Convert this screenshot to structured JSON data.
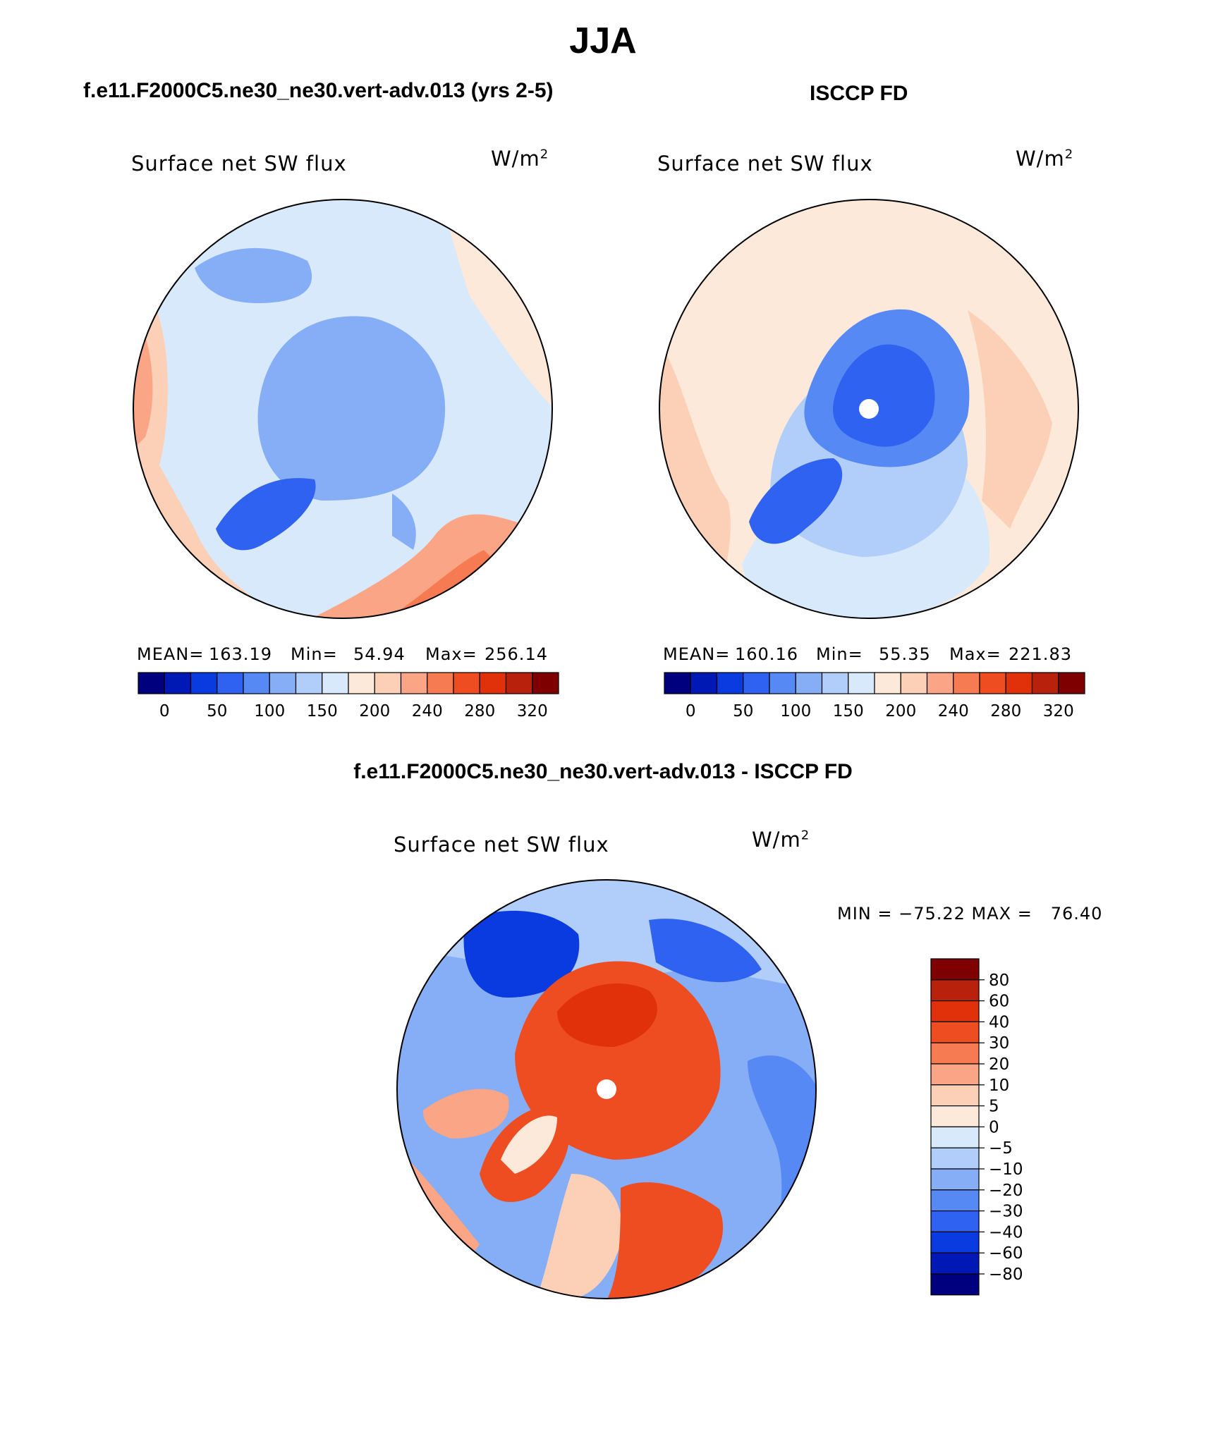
{
  "main_title": "JJA",
  "panels": {
    "model": {
      "title": "f.e11.F2000C5.ne30_ne30.vert-adv.013 (yrs 2-5)",
      "field": "Surface net SW flux",
      "units_base": "W/m",
      "units_exp": "2",
      "mean_label": "MEAN=",
      "mean": "163.19",
      "min_label": "Min=",
      "min": "54.94",
      "max_label": "Max=",
      "max": "256.14"
    },
    "obs": {
      "title": "ISCCP FD",
      "field": "Surface net SW flux",
      "units_base": "W/m",
      "units_exp": "2",
      "mean_label": "MEAN=",
      "mean": "160.16",
      "min_label": "Min=",
      "min": "55.35",
      "max_label": "Max=",
      "max": "221.83"
    },
    "diff": {
      "title": "f.e11.F2000C5.ne30_ne30.vert-adv.013 - ISCCP FD",
      "field": "Surface net SW flux",
      "units_base": "W/m",
      "units_exp": "2",
      "minmax_text": "MIN = −75.22 MAX =   76.40"
    }
  },
  "chart_data": [
    {
      "type": "heatmap",
      "projection": "north-polar-stereographic",
      "title": "f.e11.F2000C5.ne30_ne30.vert-adv.013 (yrs 2-5)",
      "field": "Surface net SW flux",
      "units": "W/m2",
      "mean": 163.19,
      "min": 54.94,
      "max": 256.14,
      "colorbar": {
        "orientation": "horizontal",
        "tick_labels": [
          "0",
          "50",
          "100",
          "150",
          "200",
          "240",
          "280",
          "320"
        ],
        "colors": [
          "#00007f",
          "#0018b4",
          "#0a3be0",
          "#2f62f0",
          "#5689f3",
          "#86aef6",
          "#b1cdf9",
          "#d8e9fc",
          "#fde9d9",
          "#fcd0b6",
          "#faa585",
          "#f67b53",
          "#ee4d22",
          "#e0310b",
          "#b8210b",
          "#7f0000"
        ]
      }
    },
    {
      "type": "heatmap",
      "projection": "north-polar-stereographic",
      "title": "ISCCP FD",
      "field": "Surface net SW flux",
      "units": "W/m2",
      "mean": 160.16,
      "min": 55.35,
      "max": 221.83,
      "colorbar": {
        "orientation": "horizontal",
        "tick_labels": [
          "0",
          "50",
          "100",
          "150",
          "200",
          "240",
          "280",
          "320"
        ],
        "colors": [
          "#00007f",
          "#0018b4",
          "#0a3be0",
          "#2f62f0",
          "#5689f3",
          "#86aef6",
          "#b1cdf9",
          "#d8e9fc",
          "#fde9d9",
          "#fcd0b6",
          "#faa585",
          "#f67b53",
          "#ee4d22",
          "#e0310b",
          "#b8210b",
          "#7f0000"
        ]
      }
    },
    {
      "type": "heatmap",
      "projection": "north-polar-stereographic",
      "title": "f.e11.F2000C5.ne30_ne30.vert-adv.013 - ISCCP FD",
      "field": "Surface net SW flux",
      "units": "W/m2",
      "min": -75.22,
      "max": 76.4,
      "colorbar": {
        "orientation": "vertical",
        "tick_labels": [
          "80",
          "60",
          "40",
          "30",
          "20",
          "10",
          "5",
          "0",
          "−5",
          "−10",
          "−20",
          "−30",
          "−40",
          "−60",
          "−80"
        ],
        "colors": [
          "#7f0000",
          "#b8210b",
          "#e0310b",
          "#ee4d22",
          "#f67b53",
          "#faa585",
          "#fcd0b6",
          "#fde9d9",
          "#d8e9fc",
          "#b1cdf9",
          "#86aef6",
          "#5689f3",
          "#2f62f0",
          "#0a3be0",
          "#0018b4",
          "#00007f"
        ]
      }
    }
  ]
}
